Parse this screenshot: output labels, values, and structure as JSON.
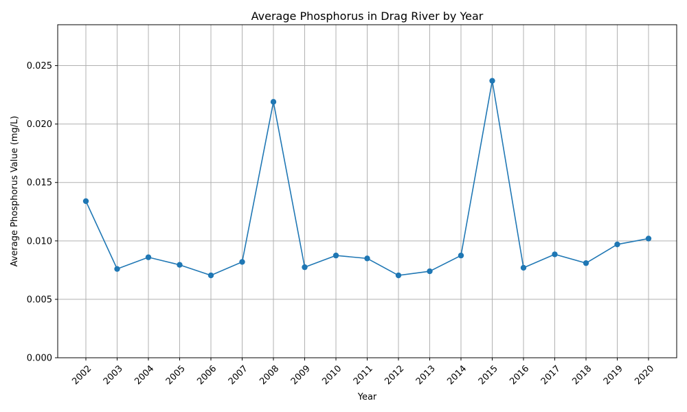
{
  "chart_data": {
    "type": "line",
    "title": "Average Phosphorus in Drag River by Year",
    "xlabel": "Year",
    "ylabel": "Average Phosphorus Value (mg/L)",
    "categories": [
      "2002",
      "2003",
      "2004",
      "2005",
      "2006",
      "2007",
      "2008",
      "2009",
      "2010",
      "2011",
      "2012",
      "2013",
      "2014",
      "2015",
      "2016",
      "2017",
      "2018",
      "2019",
      "2020"
    ],
    "series": [
      {
        "name": "",
        "color": "#1f77b4",
        "values": [
          0.0134,
          0.0076,
          0.0086,
          0.00795,
          0.00705,
          0.0082,
          0.0219,
          0.00775,
          0.00875,
          0.0085,
          0.00705,
          0.0074,
          0.00875,
          0.0237,
          0.0077,
          0.00885,
          0.0081,
          0.0097,
          0.0102
        ]
      }
    ],
    "ylim": [
      0,
      0.0285
    ],
    "yticks": [
      "0.000",
      "0.005",
      "0.010",
      "0.015",
      "0.020",
      "0.025"
    ],
    "ytick_values": [
      0,
      0.005,
      0.01,
      0.015,
      0.02,
      0.025
    ],
    "grid": true,
    "legend": "none"
  }
}
